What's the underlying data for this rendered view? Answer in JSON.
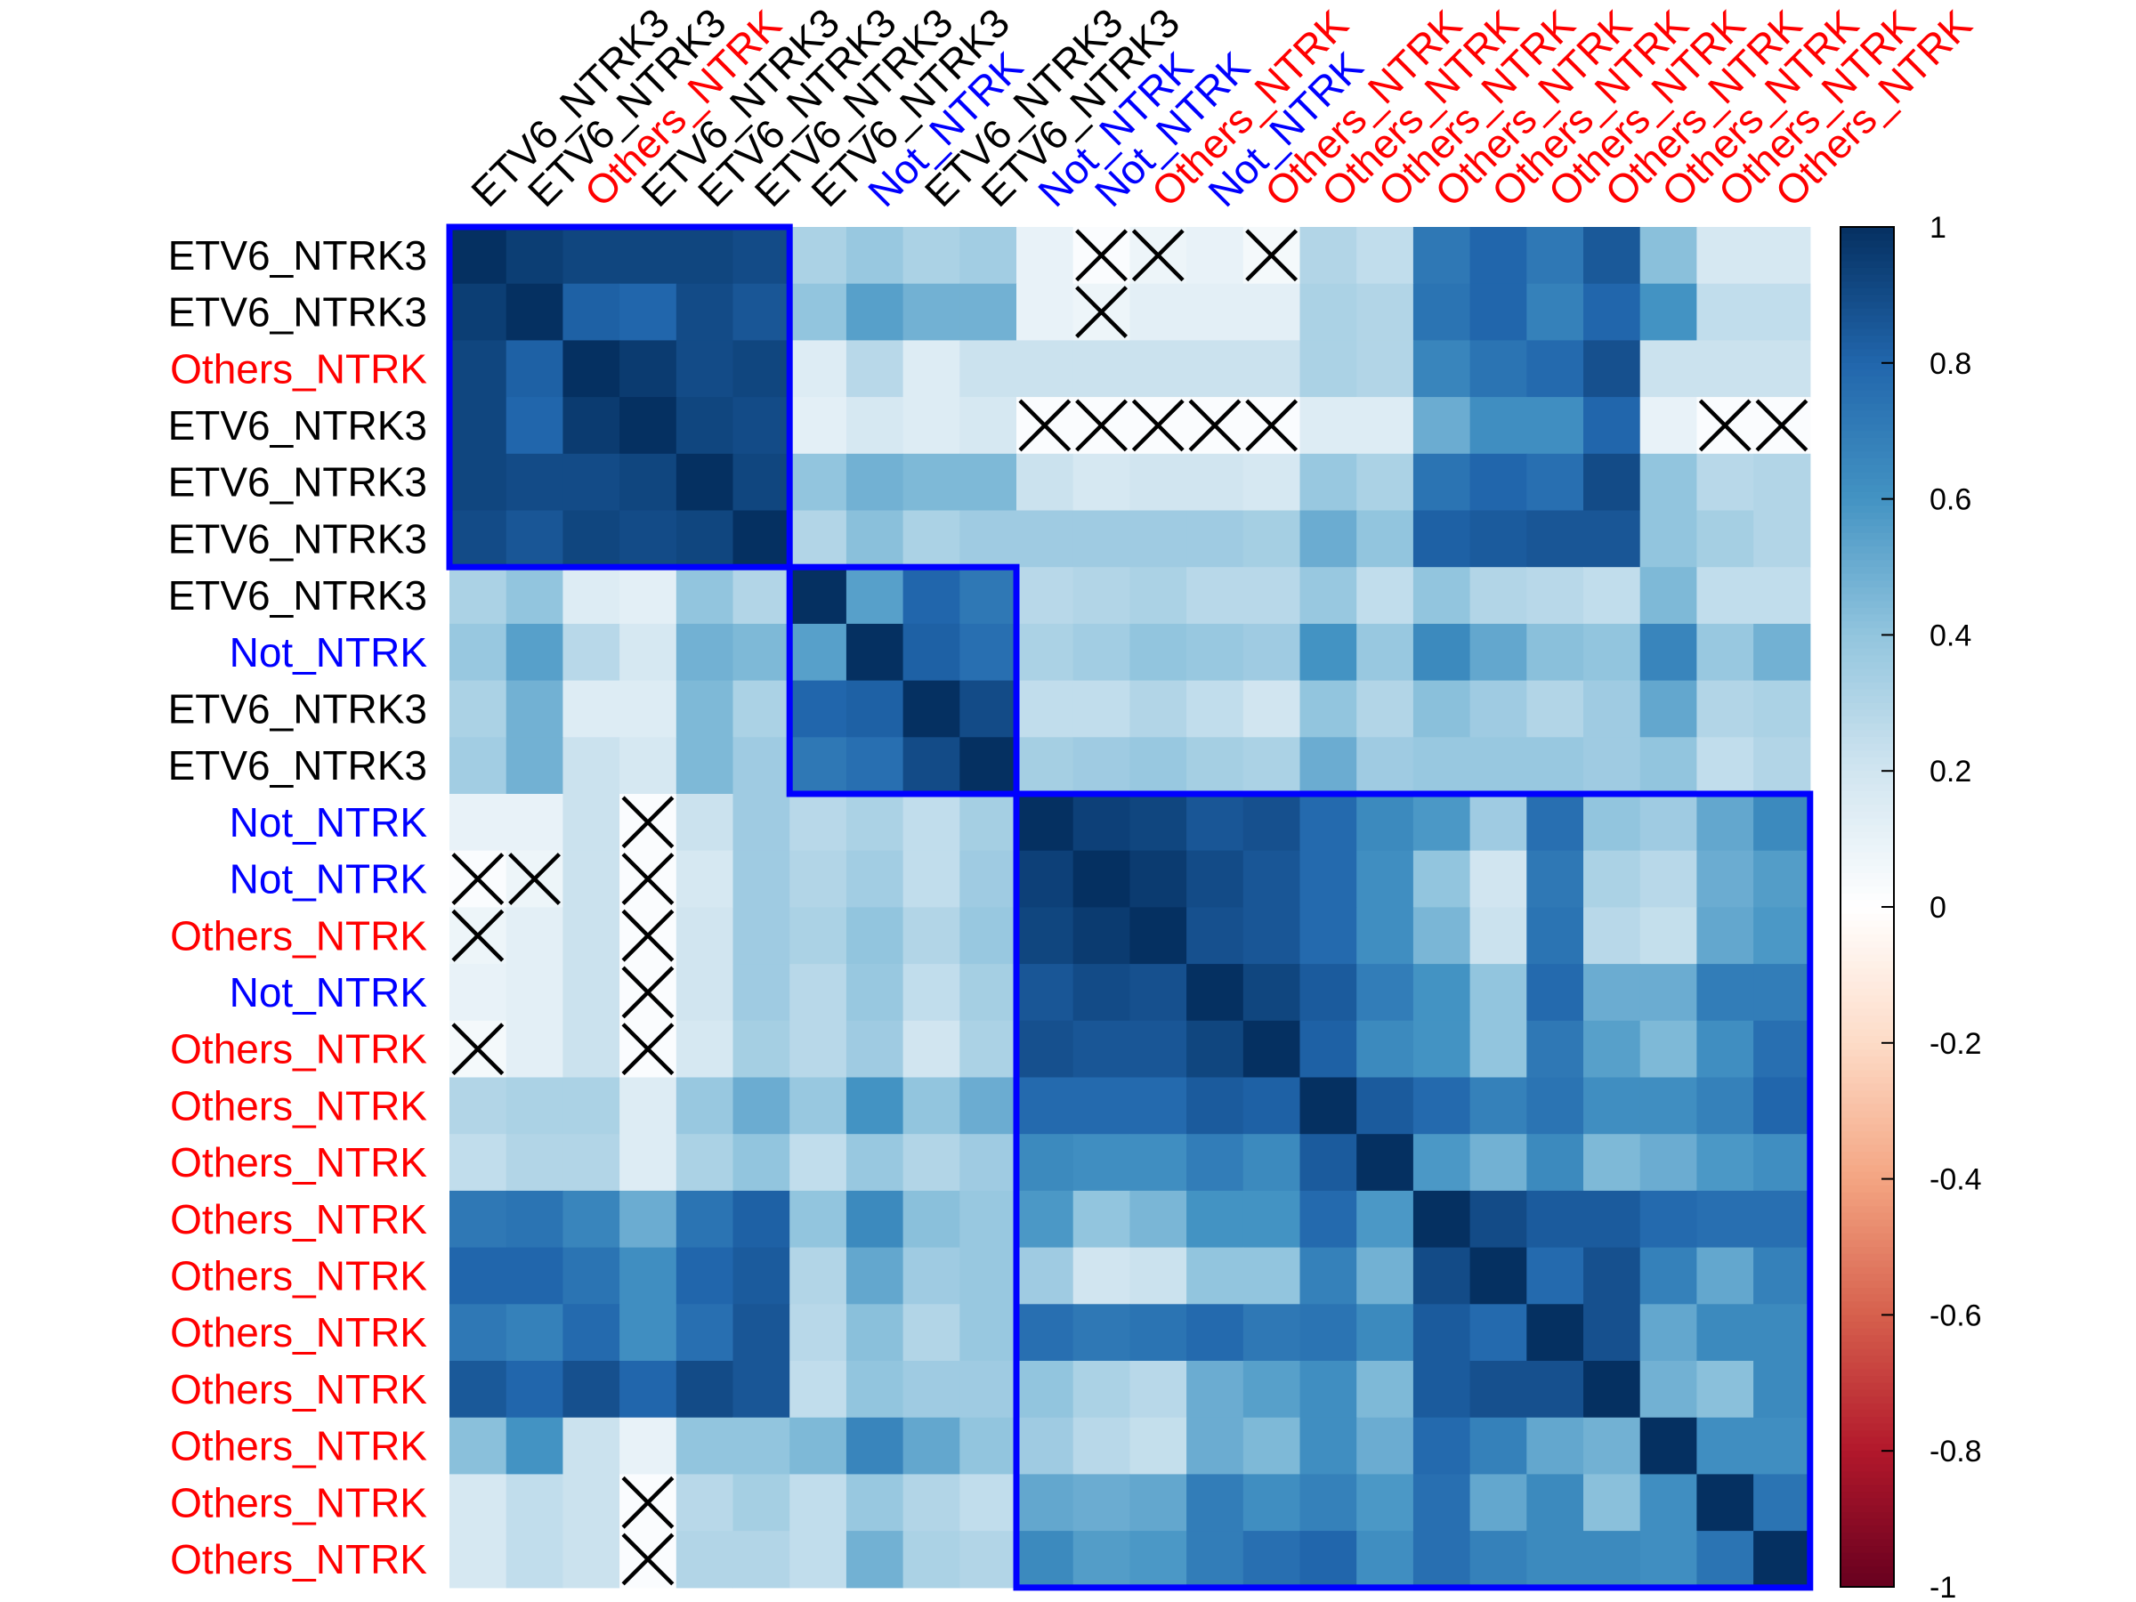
{
  "chart_data": {
    "type": "heatmap",
    "title": "",
    "row_labels": [
      "ETV6_NTRK3",
      "ETV6_NTRK3",
      "Others_NTRK",
      "ETV6_NTRK3",
      "ETV6_NTRK3",
      "ETV6_NTRK3",
      "ETV6_NTRK3",
      "Not_NTRK",
      "ETV6_NTRK3",
      "ETV6_NTRK3",
      "Not_NTRK",
      "Not_NTRK",
      "Others_NTRK",
      "Not_NTRK",
      "Others_NTRK",
      "Others_NTRK",
      "Others_NTRK",
      "Others_NTRK",
      "Others_NTRK",
      "Others_NTRK",
      "Others_NTRK",
      "Others_NTRK",
      "Others_NTRK",
      "Others_NTRK"
    ],
    "col_labels": [
      "ETV6_NTRK3",
      "ETV6_NTRK3",
      "Others_NTRK",
      "ETV6_NTRK3",
      "ETV6_NTRK3",
      "ETV6_NTRK3",
      "ETV6_NTRK3",
      "Not_NTRK",
      "ETV6_NTRK3",
      "ETV6_NTRK3",
      "Not_NTRK",
      "Not_NTRK",
      "Others_NTRK",
      "Not_NTRK",
      "Others_NTRK",
      "Others_NTRK",
      "Others_NTRK",
      "Others_NTRK",
      "Others_NTRK",
      "Others_NTRK",
      "Others_NTRK",
      "Others_NTRK",
      "Others_NTRK",
      "Others_NTRK"
    ],
    "label_colors": {
      "ETV6_NTRK3": "#000000",
      "Not_NTRK": "#0000ff",
      "Others_NTRK": "#ff0000"
    },
    "values": [
      [
        1.0,
        0.95,
        0.92,
        0.92,
        0.92,
        0.9,
        0.32,
        0.38,
        0.32,
        0.35,
        0.1,
        0.02,
        0.08,
        0.1,
        0.05,
        0.3,
        0.25,
        0.72,
        0.8,
        0.72,
        0.85,
        0.42,
        0.18,
        0.18
      ],
      [
        0.95,
        1.0,
        0.82,
        0.8,
        0.9,
        0.86,
        0.4,
        0.55,
        0.48,
        0.48,
        0.1,
        0.08,
        0.12,
        0.12,
        0.12,
        0.32,
        0.3,
        0.74,
        0.8,
        0.68,
        0.8,
        0.6,
        0.25,
        0.25
      ],
      [
        0.92,
        0.82,
        1.0,
        0.96,
        0.9,
        0.92,
        0.15,
        0.28,
        0.15,
        0.22,
        0.22,
        0.22,
        0.22,
        0.22,
        0.22,
        0.32,
        0.3,
        0.66,
        0.74,
        0.78,
        0.88,
        0.22,
        0.22,
        0.22
      ],
      [
        0.92,
        0.8,
        0.96,
        1.0,
        0.92,
        0.9,
        0.12,
        0.18,
        0.15,
        0.18,
        0.02,
        0.02,
        0.02,
        0.02,
        0.02,
        0.15,
        0.15,
        0.5,
        0.62,
        0.62,
        0.8,
        0.1,
        0.02,
        0.02
      ],
      [
        0.92,
        0.9,
        0.9,
        0.92,
        1.0,
        0.92,
        0.4,
        0.48,
        0.45,
        0.45,
        0.22,
        0.18,
        0.2,
        0.2,
        0.18,
        0.38,
        0.32,
        0.74,
        0.8,
        0.76,
        0.9,
        0.4,
        0.28,
        0.3
      ],
      [
        0.9,
        0.86,
        0.92,
        0.9,
        0.92,
        1.0,
        0.3,
        0.42,
        0.32,
        0.36,
        0.36,
        0.36,
        0.36,
        0.36,
        0.34,
        0.5,
        0.4,
        0.82,
        0.84,
        0.86,
        0.86,
        0.4,
        0.34,
        0.3
      ],
      [
        0.32,
        0.4,
        0.15,
        0.12,
        0.4,
        0.3,
        1.0,
        0.55,
        0.8,
        0.72,
        0.28,
        0.3,
        0.32,
        0.28,
        0.28,
        0.38,
        0.25,
        0.4,
        0.3,
        0.28,
        0.25,
        0.45,
        0.25,
        0.25
      ],
      [
        0.38,
        0.55,
        0.28,
        0.18,
        0.48,
        0.45,
        0.55,
        1.0,
        0.82,
        0.76,
        0.32,
        0.35,
        0.4,
        0.38,
        0.36,
        0.6,
        0.38,
        0.64,
        0.52,
        0.42,
        0.4,
        0.66,
        0.38,
        0.48
      ],
      [
        0.32,
        0.48,
        0.15,
        0.15,
        0.45,
        0.32,
        0.8,
        0.82,
        1.0,
        0.9,
        0.25,
        0.25,
        0.3,
        0.25,
        0.2,
        0.4,
        0.3,
        0.42,
        0.36,
        0.3,
        0.36,
        0.52,
        0.3,
        0.32
      ],
      [
        0.35,
        0.48,
        0.22,
        0.18,
        0.45,
        0.36,
        0.72,
        0.76,
        0.9,
        1.0,
        0.34,
        0.36,
        0.38,
        0.34,
        0.32,
        0.5,
        0.36,
        0.38,
        0.38,
        0.38,
        0.36,
        0.4,
        0.25,
        0.3
      ],
      [
        0.1,
        0.1,
        0.22,
        0.02,
        0.22,
        0.36,
        0.28,
        0.32,
        0.25,
        0.34,
        1.0,
        0.94,
        0.92,
        0.86,
        0.88,
        0.78,
        0.64,
        0.58,
        0.36,
        0.76,
        0.4,
        0.36,
        0.52,
        0.64
      ],
      [
        0.02,
        0.08,
        0.22,
        0.02,
        0.18,
        0.36,
        0.3,
        0.35,
        0.25,
        0.36,
        0.94,
        1.0,
        0.96,
        0.9,
        0.86,
        0.78,
        0.62,
        0.4,
        0.2,
        0.72,
        0.32,
        0.28,
        0.5,
        0.56
      ],
      [
        0.08,
        0.12,
        0.22,
        0.02,
        0.2,
        0.36,
        0.32,
        0.4,
        0.3,
        0.38,
        0.92,
        0.96,
        1.0,
        0.88,
        0.86,
        0.78,
        0.62,
        0.46,
        0.22,
        0.74,
        0.28,
        0.24,
        0.52,
        0.58
      ],
      [
        0.1,
        0.12,
        0.22,
        0.02,
        0.2,
        0.36,
        0.28,
        0.38,
        0.25,
        0.34,
        0.86,
        0.9,
        0.88,
        1.0,
        0.92,
        0.84,
        0.7,
        0.6,
        0.4,
        0.78,
        0.5,
        0.5,
        0.7,
        0.7
      ],
      [
        0.05,
        0.12,
        0.22,
        0.02,
        0.18,
        0.34,
        0.28,
        0.36,
        0.2,
        0.32,
        0.88,
        0.86,
        0.86,
        0.92,
        1.0,
        0.82,
        0.64,
        0.6,
        0.4,
        0.72,
        0.55,
        0.45,
        0.62,
        0.76
      ],
      [
        0.3,
        0.32,
        0.32,
        0.15,
        0.38,
        0.5,
        0.38,
        0.6,
        0.4,
        0.5,
        0.78,
        0.78,
        0.78,
        0.84,
        0.82,
        1.0,
        0.84,
        0.78,
        0.68,
        0.74,
        0.62,
        0.62,
        0.68,
        0.8
      ],
      [
        0.25,
        0.3,
        0.3,
        0.15,
        0.32,
        0.4,
        0.25,
        0.38,
        0.3,
        0.36,
        0.64,
        0.62,
        0.62,
        0.7,
        0.64,
        0.84,
        1.0,
        0.58,
        0.48,
        0.64,
        0.45,
        0.5,
        0.58,
        0.62
      ],
      [
        0.72,
        0.74,
        0.66,
        0.5,
        0.74,
        0.82,
        0.4,
        0.64,
        0.42,
        0.38,
        0.58,
        0.4,
        0.46,
        0.6,
        0.6,
        0.78,
        0.58,
        1.0,
        0.9,
        0.84,
        0.84,
        0.78,
        0.76,
        0.76
      ],
      [
        0.8,
        0.8,
        0.74,
        0.62,
        0.8,
        0.84,
        0.3,
        0.52,
        0.36,
        0.38,
        0.36,
        0.2,
        0.22,
        0.4,
        0.4,
        0.68,
        0.48,
        0.9,
        1.0,
        0.78,
        0.88,
        0.68,
        0.52,
        0.68
      ],
      [
        0.72,
        0.68,
        0.78,
        0.62,
        0.76,
        0.86,
        0.28,
        0.42,
        0.3,
        0.38,
        0.76,
        0.72,
        0.74,
        0.78,
        0.72,
        0.74,
        0.64,
        0.84,
        0.78,
        1.0,
        0.88,
        0.52,
        0.64,
        0.64
      ],
      [
        0.85,
        0.8,
        0.88,
        0.8,
        0.9,
        0.86,
        0.25,
        0.4,
        0.36,
        0.36,
        0.4,
        0.32,
        0.28,
        0.5,
        0.55,
        0.62,
        0.45,
        0.84,
        0.88,
        0.88,
        1.0,
        0.48,
        0.42,
        0.64
      ],
      [
        0.42,
        0.6,
        0.22,
        0.1,
        0.4,
        0.4,
        0.45,
        0.66,
        0.52,
        0.4,
        0.36,
        0.28,
        0.24,
        0.5,
        0.45,
        0.62,
        0.5,
        0.78,
        0.68,
        0.52,
        0.48,
        1.0,
        0.62,
        0.62
      ],
      [
        0.18,
        0.25,
        0.22,
        0.02,
        0.28,
        0.34,
        0.25,
        0.38,
        0.3,
        0.25,
        0.52,
        0.5,
        0.52,
        0.7,
        0.62,
        0.68,
        0.58,
        0.76,
        0.52,
        0.64,
        0.42,
        0.62,
        1.0,
        0.74
      ],
      [
        0.18,
        0.25,
        0.22,
        0.02,
        0.3,
        0.3,
        0.25,
        0.48,
        0.32,
        0.3,
        0.64,
        0.56,
        0.58,
        0.7,
        0.76,
        0.8,
        0.62,
        0.76,
        0.68,
        0.64,
        0.64,
        0.62,
        0.74,
        1.0
      ]
    ],
    "crossed_cells": [
      [
        0,
        11
      ],
      [
        0,
        12
      ],
      [
        0,
        14
      ],
      [
        1,
        11
      ],
      [
        3,
        10
      ],
      [
        3,
        11
      ],
      [
        3,
        12
      ],
      [
        3,
        13
      ],
      [
        3,
        14
      ],
      [
        3,
        22
      ],
      [
        3,
        23
      ],
      [
        11,
        0
      ],
      [
        11,
        1
      ],
      [
        12,
        0
      ],
      [
        14,
        0
      ],
      [
        10,
        3
      ],
      [
        11,
        3
      ],
      [
        12,
        3
      ],
      [
        13,
        3
      ],
      [
        14,
        3
      ],
      [
        22,
        3
      ],
      [
        23,
        3
      ]
    ],
    "cluster_boxes": [
      {
        "start": 0,
        "end": 5
      },
      {
        "start": 6,
        "end": 9
      },
      {
        "start": 10,
        "end": 23
      }
    ],
    "cluster_box_color": "#0000ff",
    "colorbar": {
      "range": [
        -1,
        1
      ],
      "ticks": [
        "1",
        "0.8",
        "0.6",
        "0.4",
        "0.2",
        "0",
        "-0.2",
        "-0.4",
        "-0.6",
        "-0.8",
        "-1"
      ],
      "colors": [
        "#67001f",
        "#b2182b",
        "#d6604d",
        "#f4a582",
        "#fddbc7",
        "#ffffff",
        "#d1e5f0",
        "#92c5de",
        "#4393c3",
        "#2166ac",
        "#053061"
      ],
      "placement": "right"
    }
  }
}
